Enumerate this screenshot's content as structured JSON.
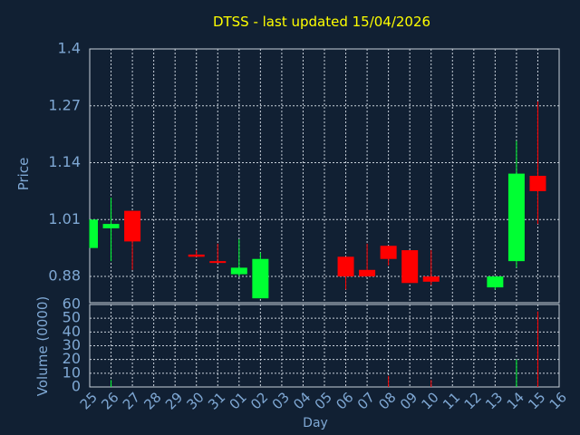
{
  "chart_data": {
    "type": "candlestick",
    "title": "DTSS - last updated 15/04/2026",
    "xlabel": "Day",
    "ylabel": "Price",
    "volume_label": "Volume (0000)",
    "grid": true,
    "price_ylim": [
      0.82,
      1.4
    ],
    "price_ticks": [
      "1.4",
      "1.27",
      "1.14",
      "1.01",
      "0.88"
    ],
    "volume_ylim": [
      0,
      60
    ],
    "volume_ticks": [
      "60",
      "50",
      "40",
      "30",
      "20",
      "10",
      "0"
    ],
    "x_ticks": [
      "25",
      "26",
      "27",
      "28",
      "29",
      "30",
      "31",
      "01",
      "02",
      "03",
      "04",
      "05",
      "06",
      "07",
      "08",
      "09",
      "10",
      "11",
      "12",
      "13",
      "14",
      "15",
      "16"
    ],
    "candles": [
      {
        "x": "25",
        "open": 0.945,
        "high": 1.01,
        "low": 0.945,
        "close": 1.01
      },
      {
        "x": "26",
        "open": 0.99,
        "high": 1.06,
        "low": 0.915,
        "close": 1.0
      },
      {
        "x": "27",
        "open": 1.03,
        "high": 1.03,
        "low": 0.895,
        "close": 0.96
      },
      {
        "x": "30",
        "open": 0.93,
        "high": 0.94,
        "low": 0.925,
        "close": 0.925
      },
      {
        "x": "31",
        "open": 0.915,
        "high": 0.955,
        "low": 0.91,
        "close": 0.912
      },
      {
        "x": "01",
        "open": 0.885,
        "high": 0.965,
        "low": 0.88,
        "close": 0.9
      },
      {
        "x": "02",
        "open": 0.83,
        "high": 0.935,
        "low": 0.83,
        "close": 0.92
      },
      {
        "x": "06",
        "open": 0.925,
        "high": 0.925,
        "low": 0.85,
        "close": 0.88
      },
      {
        "x": "07",
        "open": 0.895,
        "high": 0.955,
        "low": 0.88,
        "close": 0.88
      },
      {
        "x": "08",
        "open": 0.95,
        "high": 0.95,
        "low": 0.905,
        "close": 0.92
      },
      {
        "x": "09",
        "open": 0.94,
        "high": 0.94,
        "low": 0.865,
        "close": 0.865
      },
      {
        "x": "10",
        "open": 0.88,
        "high": 0.94,
        "low": 0.86,
        "close": 0.868
      },
      {
        "x": "13",
        "open": 0.855,
        "high": 0.88,
        "low": 0.85,
        "close": 0.88
      },
      {
        "x": "14",
        "open": 0.915,
        "high": 1.19,
        "low": 0.9,
        "close": 1.115
      },
      {
        "x": "15",
        "open": 1.11,
        "high": 1.28,
        "low": 1.0,
        "close": 1.075
      }
    ],
    "volume": [
      {
        "x": "26",
        "value": 5
      },
      {
        "x": "08",
        "value": 8
      },
      {
        "x": "10",
        "value": 5
      },
      {
        "x": "14",
        "value": 20
      },
      {
        "x": "15",
        "value": 55
      }
    ],
    "colors": {
      "background": "#112033",
      "title": "#ffff00",
      "axis_text": "#7fa8d4",
      "grid": "#c8d0da",
      "up": "#00ff33",
      "down": "#ff0000"
    }
  }
}
